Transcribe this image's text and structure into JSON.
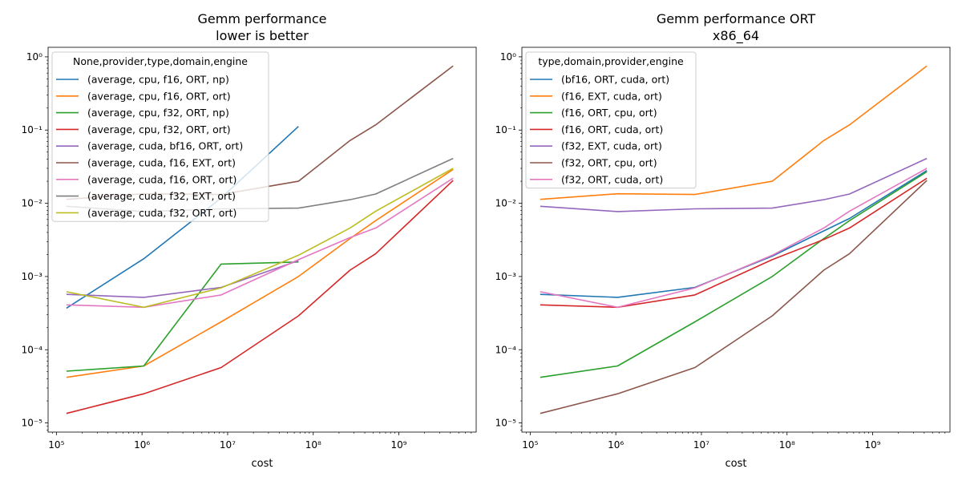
{
  "chart_data": [
    {
      "type": "line",
      "title": "Gemm performance",
      "subtitle": "lower is better",
      "xlabel": "cost",
      "ylabel": "",
      "xscale": "log",
      "yscale": "log",
      "xlim": [
        80000,
        8000000000
      ],
      "ylim": [
        7.5e-06,
        1.35
      ],
      "grid": false,
      "legend_title": "None,provider,type,domain,engine",
      "legend_position": "top-left",
      "x": [
        131072,
        1048576,
        8388608,
        67108864,
        268435456,
        536870912,
        4294967296
      ],
      "series": [
        {
          "name": "(average, cpu, f16, ORT, np)",
          "color": "#1f77b4",
          "values": [
            0.00037,
            0.00175,
            0.0118,
            0.112,
            null,
            null,
            null
          ]
        },
        {
          "name": "(average, cpu, f16, ORT, ort)",
          "color": "#ff7f0e",
          "values": [
            4.2e-05,
            6e-05,
            0.00024,
            0.001,
            0.0033,
            0.0058,
            0.029
          ]
        },
        {
          "name": "(average, cpu, f32, ORT, np)",
          "color": "#2ca02c",
          "values": [
            5.1e-05,
            6e-05,
            0.00148,
            0.00158,
            null,
            null,
            null
          ]
        },
        {
          "name": "(average, cpu, f32, ORT, ort)",
          "color": "#d62728",
          "values": [
            1.35e-05,
            2.5e-05,
            5.7e-05,
            0.00029,
            0.00122,
            0.00205,
            0.0205
          ]
        },
        {
          "name": "(average, cuda, bf16, ORT, ort)",
          "color": "#9467bd",
          "values": [
            0.00057,
            0.00052,
            0.00071,
            0.00165,
            null,
            null,
            null
          ]
        },
        {
          "name": "(average, cuda, f16, EXT, ort)",
          "color": "#8c564b",
          "values": [
            0.0113,
            0.0135,
            0.0132,
            0.02,
            0.072,
            0.118,
            0.75
          ]
        },
        {
          "name": "(average, cuda, f16, ORT, ort)",
          "color": "#e377c2",
          "values": [
            0.00041,
            0.00038,
            0.00056,
            0.0017,
            0.0034,
            0.0046,
            0.022
          ]
        },
        {
          "name": "(average, cuda, f32, EXT, ort)",
          "color": "#7f7f7f",
          "values": [
            0.0091,
            0.0077,
            0.0084,
            0.0086,
            0.0112,
            0.0134,
            0.041
          ]
        },
        {
          "name": "(average, cuda, f32, ORT, ort)",
          "color": "#bcbd22",
          "values": [
            0.00062,
            0.00038,
            0.0007,
            0.00195,
            0.0046,
            0.0078,
            0.03
          ]
        }
      ]
    },
    {
      "type": "line",
      "title": "Gemm performance ORT",
      "subtitle": "x86_64",
      "xlabel": "cost",
      "ylabel": "",
      "xscale": "log",
      "yscale": "log",
      "xlim": [
        80000,
        8000000000
      ],
      "ylim": [
        7.5e-06,
        1.35
      ],
      "grid": false,
      "legend_title": "type,domain,provider,engine",
      "legend_position": "top-left",
      "x": [
        131072,
        1048576,
        8388608,
        67108864,
        268435456,
        536870912,
        4294967296
      ],
      "series": [
        {
          "name": "(bf16, ORT, cuda, ort)",
          "color": "#1f77b4",
          "values": [
            0.00057,
            0.00052,
            0.00071,
            0.0019,
            0.0042,
            0.0062,
            0.028
          ]
        },
        {
          "name": "(f16, EXT, cuda, ort)",
          "color": "#ff7f0e",
          "values": [
            0.0113,
            0.0135,
            0.0132,
            0.02,
            0.072,
            0.118,
            0.75
          ]
        },
        {
          "name": "(f16, ORT, cpu, ort)",
          "color": "#2ca02c",
          "values": [
            4.2e-05,
            6e-05,
            0.00024,
            0.001,
            0.0033,
            0.0058,
            0.027
          ]
        },
        {
          "name": "(f16, ORT, cuda, ort)",
          "color": "#d62728",
          "values": [
            0.00041,
            0.00038,
            0.00056,
            0.0017,
            0.0032,
            0.0046,
            0.022
          ]
        },
        {
          "name": "(f32, EXT, cuda, ort)",
          "color": "#9467bd",
          "values": [
            0.0091,
            0.0077,
            0.0084,
            0.0086,
            0.0112,
            0.0134,
            0.041
          ]
        },
        {
          "name": "(f32, ORT, cpu, ort)",
          "color": "#8c564b",
          "values": [
            1.35e-05,
            2.5e-05,
            5.7e-05,
            0.00029,
            0.00122,
            0.00205,
            0.0205
          ]
        },
        {
          "name": "(f32, ORT, cuda, ort)",
          "color": "#e377c2",
          "values": [
            0.00062,
            0.00038,
            0.0007,
            0.00195,
            0.0046,
            0.0078,
            0.03
          ]
        }
      ]
    }
  ]
}
